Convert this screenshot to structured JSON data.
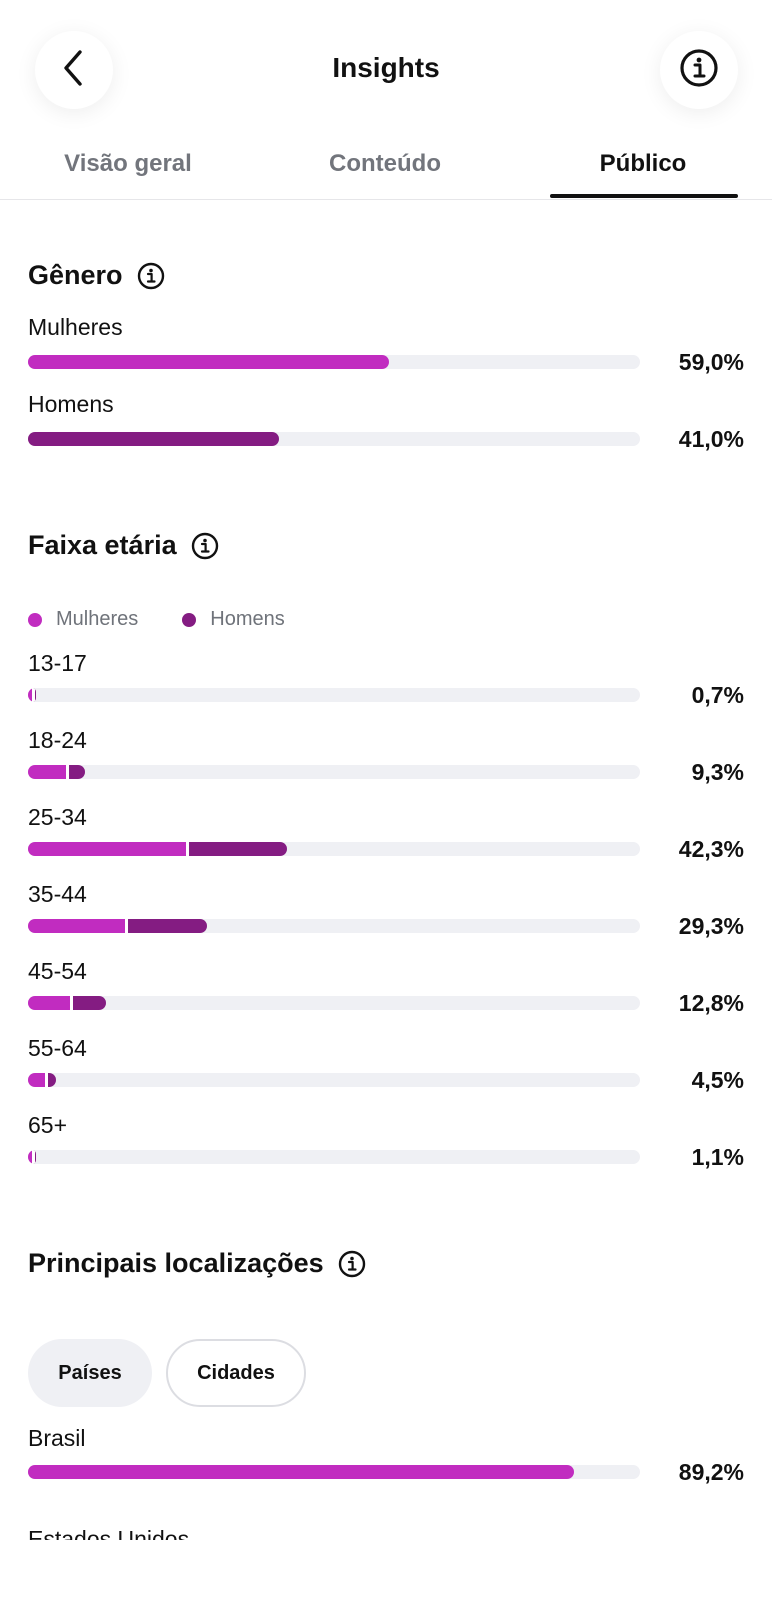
{
  "header": {
    "title": "Insights",
    "back_icon": "chevron-left-icon",
    "info_icon": "info-icon"
  },
  "tabs": [
    {
      "label": "Visão geral",
      "active": false
    },
    {
      "label": "Conteúdo",
      "active": false
    },
    {
      "label": "Público",
      "active": true
    }
  ],
  "colors": {
    "women": "#c12cc0",
    "men": "#841c82",
    "track": "#eff0f4"
  },
  "gender": {
    "title": "Gênero",
    "rows": [
      {
        "label": "Mulheres",
        "value": "59,0%",
        "fraction": 0.59
      },
      {
        "label": "Homens",
        "value": "41,0%",
        "fraction": 0.41
      }
    ]
  },
  "age": {
    "title": "Faixa etária",
    "legend": {
      "women": "Mulheres",
      "men": "Homens"
    },
    "rows": [
      {
        "label": "13-17",
        "value": "0,7%",
        "total": 0.007,
        "women_share": 0.5
      },
      {
        "label": "18-24",
        "value": "9,3%",
        "total": 0.093,
        "women_share": 0.66
      },
      {
        "label": "25-34",
        "value": "42,3%",
        "total": 0.423,
        "women_share": 0.61
      },
      {
        "label": "35-44",
        "value": "29,3%",
        "total": 0.293,
        "women_share": 0.54
      },
      {
        "label": "45-54",
        "value": "12,8%",
        "total": 0.128,
        "women_share": 0.54
      },
      {
        "label": "55-64",
        "value": "4,5%",
        "total": 0.045,
        "women_share": 0.6
      },
      {
        "label": "65+",
        "value": "1,1%",
        "total": 0.011,
        "women_share": 0.5
      }
    ]
  },
  "locations": {
    "title": "Principais localizações",
    "filters": [
      {
        "label": "Países",
        "active": true
      },
      {
        "label": "Cidades",
        "active": false
      }
    ],
    "rows": [
      {
        "label": "Brasil",
        "value": "89,2%",
        "fraction": 0.892
      }
    ],
    "next_label": "Estados Unidos"
  }
}
